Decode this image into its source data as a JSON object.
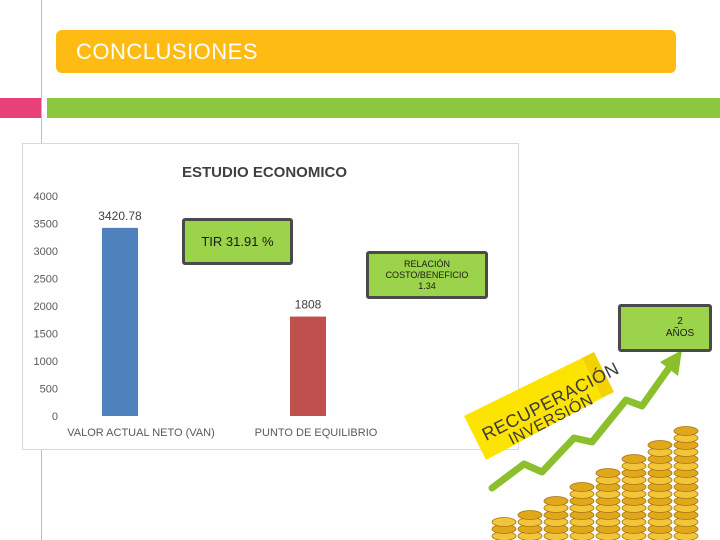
{
  "slide": {
    "title": "CONCLUSIONES",
    "accent_colors": {
      "banner": "#fdbb14",
      "pink_bar": "#e8417a",
      "green_bar": "#8dc63f",
      "callout_fill": "#9bd34b"
    }
  },
  "chart_data": {
    "type": "bar",
    "title": "ESTUDIO ECONOMICO",
    "categories": [
      "VALOR ACTUAL NETO (VAN)",
      "PUNTO DE EQUILIBRIO"
    ],
    "values": [
      3420.78,
      1808
    ],
    "value_labels": [
      "3420.78",
      "1808"
    ],
    "bar_colors": [
      "#4f81bd",
      "#c0504d"
    ],
    "ylim": [
      0,
      4000
    ],
    "yticks": [
      0,
      500,
      1000,
      1500,
      2000,
      2500,
      3000,
      3500,
      4000
    ],
    "grid": false
  },
  "callouts": {
    "tir": "TIR  31.91 %",
    "rcb_line1": "RELACIÓN",
    "rcb_line2": "COSTO/BENEFICIO",
    "rcb_line3": "1.34",
    "years_number": "2",
    "years_unit": "AÑOS"
  },
  "illustration": {
    "arrow_text_line1": "RECUPERACIÓN",
    "arrow_text_line2": "INVERSIÓN",
    "icons": [
      "growth-arrow-icon",
      "gold-coin-stack-icon"
    ]
  }
}
